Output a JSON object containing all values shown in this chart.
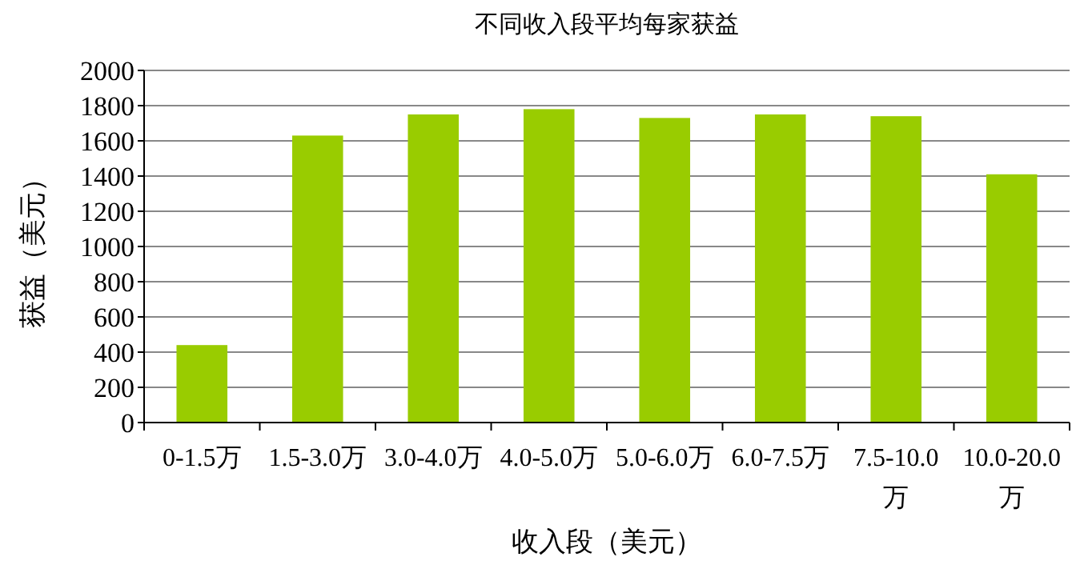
{
  "chart_data": {
    "type": "bar",
    "title": "不同收入段平均每家获益",
    "xlabel": "收入段（美元）",
    "ylabel": "获益（美元）",
    "categories": [
      "0-1.5万",
      "1.5-3.0万",
      "3.0-4.0万",
      "4.0-5.0万",
      "5.0-6.0万",
      "6.0-7.5万",
      "7.5-10.0万",
      "10.0-20.0万"
    ],
    "values": [
      440,
      1630,
      1750,
      1780,
      1730,
      1750,
      1740,
      1410
    ],
    "color": "#99cc00",
    "ylim": [
      0,
      2000
    ],
    "yticks": [
      0,
      200,
      400,
      600,
      800,
      1000,
      1200,
      1400,
      1600,
      1800,
      2000
    ],
    "grid": "y"
  }
}
